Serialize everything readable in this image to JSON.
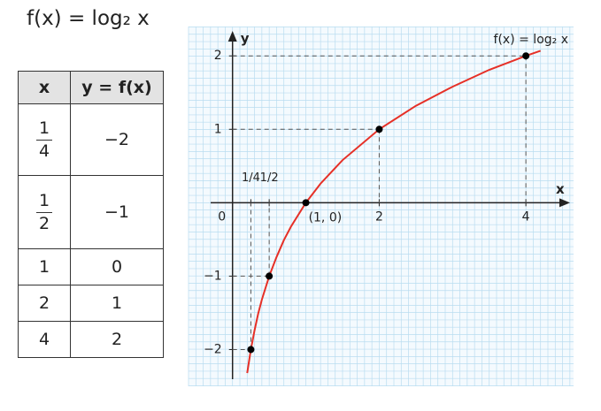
{
  "heading": "f(x) = log₂ x",
  "table": {
    "header": [
      "x",
      "y = f(x)"
    ],
    "rows": [
      [
        {
          "numerator": "1",
          "denominator": "4"
        },
        "−2"
      ],
      [
        {
          "numerator": "1",
          "denominator": "2"
        },
        "−1"
      ],
      [
        "1",
        "0"
      ],
      [
        "2",
        "1"
      ],
      [
        "4",
        "2"
      ]
    ]
  },
  "chart_data": {
    "type": "line",
    "curve_label": "f(x) = log₂ x",
    "x_label": "x",
    "y_label": "y",
    "point_label": "(1, 0)",
    "xlim": [
      -0.6,
      4.65
    ],
    "ylim": [
      -2.5,
      2.4
    ],
    "xticks": [
      0,
      {
        "value": 0.25,
        "label": "1/4"
      },
      {
        "value": 0.5,
        "label": "1/2"
      },
      2,
      4
    ],
    "yticks": [
      {
        "value": -2,
        "label": "−2"
      },
      {
        "value": -1,
        "label": "−1"
      },
      1,
      2
    ],
    "series": [
      {
        "name": "f(x) = log₂ x",
        "color": "#e63027",
        "x": [
          0.2,
          0.25,
          0.3,
          0.35,
          0.4,
          0.5,
          0.6,
          0.7,
          0.8,
          1,
          1.2,
          1.5,
          2,
          2.5,
          3,
          3.5,
          4,
          4.2
        ],
        "values": [
          -2.32,
          -2,
          -1.74,
          -1.51,
          -1.32,
          -1,
          -0.74,
          -0.51,
          -0.32,
          0,
          0.26,
          0.58,
          1,
          1.32,
          1.58,
          1.81,
          2,
          2.07
        ]
      },
      {
        "name": "points",
        "color": "#000000",
        "x": [
          0.25,
          0.5,
          1,
          2,
          4
        ],
        "values": [
          -2,
          -1,
          0,
          1,
          2
        ]
      }
    ]
  }
}
